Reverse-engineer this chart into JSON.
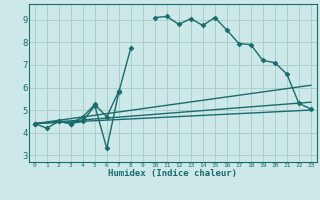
{
  "title": "",
  "xlabel": "Humidex (Indice chaleur)",
  "ylabel": "",
  "background_color": "#cce8e8",
  "grid_color": "#aad0cc",
  "line_color": "#1a6b6b",
  "x_ticks": [
    0,
    1,
    2,
    3,
    4,
    5,
    6,
    7,
    8,
    9,
    10,
    11,
    12,
    13,
    14,
    15,
    16,
    17,
    18,
    19,
    20,
    21,
    22,
    23
  ],
  "y_ticks": [
    3,
    4,
    5,
    6,
    7,
    8,
    9
  ],
  "ylim": [
    2.7,
    9.7
  ],
  "xlim": [
    -0.5,
    23.5
  ],
  "series": [
    {
      "x": [
        0,
        1,
        2,
        3,
        4,
        5,
        6,
        7,
        8,
        9,
        10,
        11,
        12,
        13,
        14,
        15,
        16,
        17,
        18,
        19,
        20,
        21,
        22,
        23
      ],
      "y": [
        4.4,
        4.2,
        4.5,
        4.4,
        4.5,
        5.2,
        3.3,
        5.8,
        7.75,
        null,
        9.1,
        9.15,
        8.8,
        9.05,
        8.75,
        9.1,
        8.55,
        7.95,
        7.9,
        7.2,
        7.1,
        6.6,
        5.3,
        5.05
      ],
      "marker": "D",
      "markersize": 2.5,
      "linewidth": 1.0
    },
    {
      "x": [
        0,
        2,
        3,
        4,
        5,
        6,
        7
      ],
      "y": [
        4.4,
        4.5,
        4.4,
        4.7,
        5.25,
        4.7,
        5.85
      ],
      "marker": "D",
      "markersize": 2.5,
      "linewidth": 1.0
    },
    {
      "x": [
        0,
        23
      ],
      "y": [
        4.4,
        5.0
      ],
      "marker": null,
      "markersize": 0,
      "linewidth": 1.0
    },
    {
      "x": [
        0,
        23
      ],
      "y": [
        4.4,
        5.35
      ],
      "marker": null,
      "markersize": 0,
      "linewidth": 1.0
    },
    {
      "x": [
        0,
        23
      ],
      "y": [
        4.4,
        6.1
      ],
      "marker": null,
      "markersize": 0,
      "linewidth": 1.0
    }
  ]
}
